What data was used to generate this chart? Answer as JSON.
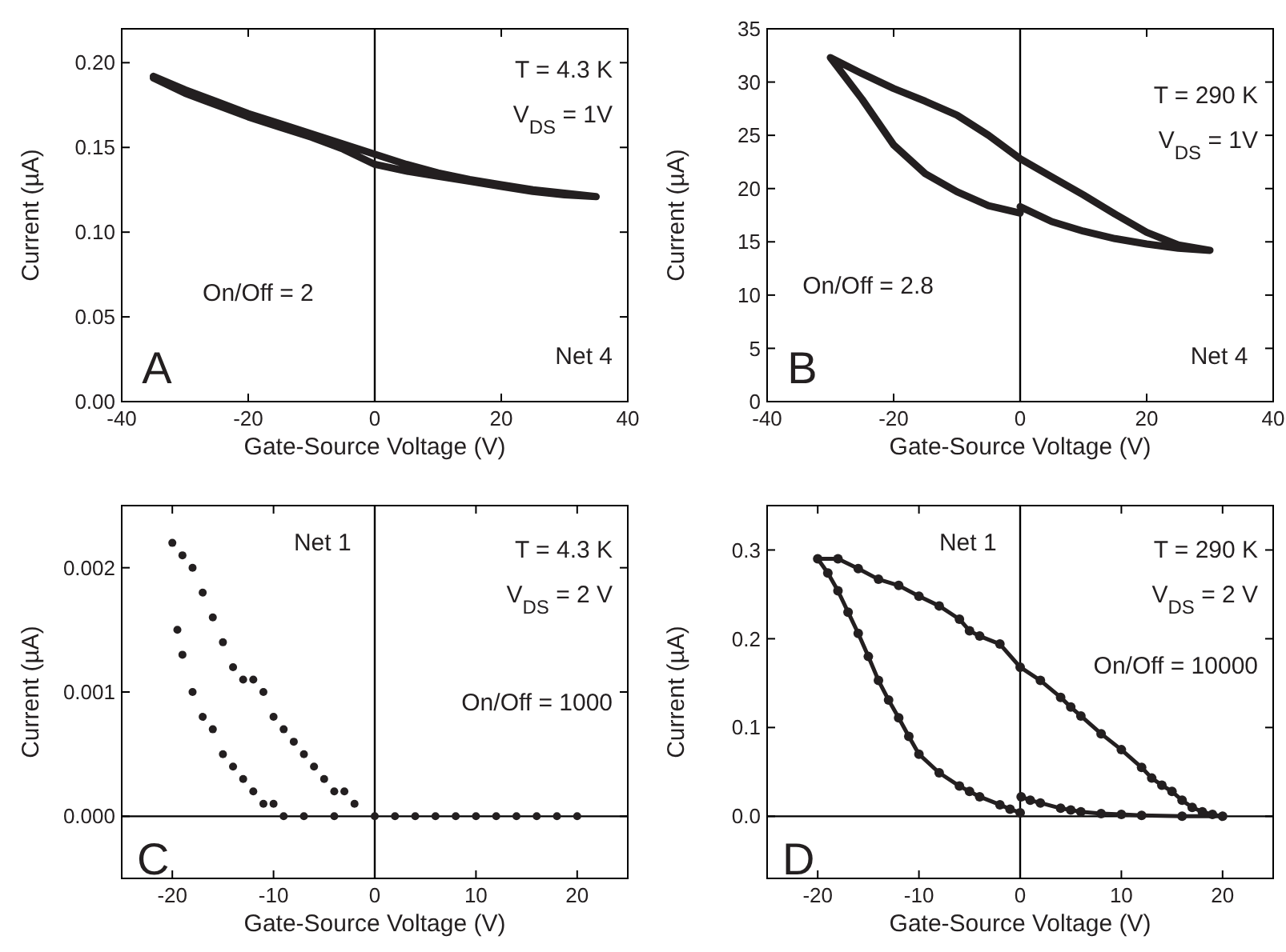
{
  "chart_data": [
    {
      "type": "line",
      "xlabel": "Gate-Source Voltage (V)",
      "ylabel": "Current (µA)",
      "xlim": [
        -40,
        40
      ],
      "xticks": [
        -40,
        -20,
        0,
        20,
        40
      ],
      "ylim": [
        0,
        0.22
      ],
      "yticks": [
        {
          "value": 0,
          "label": "0.00"
        },
        {
          "value": 0.05,
          "label": "0.05"
        },
        {
          "value": 0.1,
          "label": "0.10"
        },
        {
          "value": 0.15,
          "label": "0.15"
        },
        {
          "value": 0.2,
          "label": "0.20"
        }
      ],
      "marker": "none",
      "line_style": "solid",
      "grid": false,
      "ref_lines": [
        {
          "axis": "x",
          "value": 0,
          "color": "#000000"
        }
      ],
      "annotations": [
        "A",
        "T = 4.3 K",
        "V$_{DS}$ = 1V",
        "On/Off = 2",
        "Net 4"
      ],
      "series": [
        {
          "color": "#231f20",
          "x": [
            -35,
            -30,
            -25,
            -20,
            -15,
            -10,
            -5,
            0,
            5,
            10,
            15,
            20,
            25,
            30,
            35,
            30,
            25,
            20,
            15,
            10,
            5,
            0,
            -5,
            -10,
            -15,
            -20,
            -25,
            -30,
            -35
          ],
          "values": [
            0.192,
            0.184,
            0.177,
            0.17,
            0.164,
            0.158,
            0.152,
            0.146,
            0.14,
            0.135,
            0.131,
            0.128,
            0.125,
            0.123,
            0.121,
            0.122,
            0.124,
            0.127,
            0.13,
            0.133,
            0.136,
            0.14,
            0.149,
            0.156,
            0.162,
            0.168,
            0.175,
            0.182,
            0.191
          ]
        }
      ]
    },
    {
      "type": "line",
      "xlabel": "Gate-Source Voltage (V)",
      "ylabel": "Current (µA)",
      "xlim": [
        -40,
        40
      ],
      "xticks": [
        -40,
        -20,
        0,
        20,
        40
      ],
      "ylim": [
        0,
        35
      ],
      "yticks": [
        0,
        5,
        10,
        15,
        20,
        25,
        30,
        35
      ],
      "marker": "none",
      "line_style": "solid",
      "grid": false,
      "ref_lines": [
        {
          "axis": "x",
          "value": 0,
          "color": "#000000"
        }
      ],
      "annotations": [
        "B",
        "T = 290 K",
        "V$_{DS}$ = 1V",
        "On/Off = 2.8",
        "Net 4"
      ],
      "series": [
        {
          "color": "#231f20",
          "x": [
            0,
            5,
            10,
            15,
            20,
            25,
            30,
            25,
            20,
            15,
            10,
            5,
            0,
            -5,
            -10,
            -15,
            -20,
            -25,
            -30,
            -25,
            -20,
            -15,
            -10,
            -5,
            0
          ],
          "values": [
            18.3,
            16.9,
            16.0,
            15.3,
            14.8,
            14.4,
            14.2,
            14.7,
            15.9,
            17.6,
            19.4,
            21.1,
            22.8,
            25.0,
            26.9,
            28.2,
            29.4,
            30.8,
            32.3,
            28.4,
            24.1,
            21.4,
            19.7,
            18.4,
            17.7
          ]
        }
      ]
    },
    {
      "type": "scatter",
      "xlabel": "Gate-Source Voltage (V)",
      "ylabel": "Current (µA)",
      "xlim": [
        -25,
        25
      ],
      "xticks": [
        -20,
        -10,
        0,
        10,
        20
      ],
      "ylim": [
        -0.0005,
        0.0025
      ],
      "yticks": [
        {
          "value": 0,
          "label": "0.000"
        },
        {
          "value": 0.001,
          "label": "0.001"
        },
        {
          "value": 0.002,
          "label": "0.002"
        }
      ],
      "marker": "circle",
      "line_style": "solid",
      "grid": false,
      "ref_lines": [
        {
          "axis": "x",
          "value": 0,
          "color": "#000000"
        },
        {
          "axis": "y",
          "value": 0,
          "color": "#000000"
        }
      ],
      "annotations": [
        "C",
        "T = 4.3 K",
        "V$_{DS}$ = 2 V",
        "On/Off = 1000",
        "Net 1"
      ],
      "series": [
        {
          "color": "#231f20",
          "x": [
            -20,
            -19.5,
            -19,
            -18,
            -17,
            -16,
            -15,
            -14,
            -13,
            -12,
            -11,
            -10,
            -9,
            -7,
            -4,
            0,
            4,
            8,
            12,
            16,
            20,
            18,
            14,
            10,
            6,
            2,
            -2,
            -3,
            -4,
            -5,
            -6,
            -7,
            -8,
            -9,
            -10,
            -11,
            -12,
            -13,
            -14,
            -15,
            -16,
            -17,
            -18,
            -19
          ],
          "values": [
            0.0022,
            0.0015,
            0.0013,
            0.001,
            0.0008,
            0.0007,
            0.0005,
            0.0004,
            0.0003,
            0.0002,
            0.0001,
            0.0001,
            0,
            0,
            0,
            0,
            0,
            0,
            0,
            0,
            0,
            0,
            0,
            0,
            0,
            0,
            0.0001,
            0.0002,
            0.0002,
            0.0003,
            0.0004,
            0.0005,
            0.0006,
            0.0007,
            0.0008,
            0.001,
            0.0011,
            0.0011,
            0.0012,
            0.0014,
            0.0016,
            0.0018,
            0.002,
            0.0021
          ]
        }
      ]
    },
    {
      "type": "line",
      "xlabel": "Gate-Source Voltage (V)",
      "ylabel": "Current (µA)",
      "xlim": [
        -25,
        25
      ],
      "xticks": [
        -20,
        -10,
        0,
        10,
        20
      ],
      "ylim": [
        -0.07,
        0.35
      ],
      "yticks": [
        {
          "value": 0,
          "label": "0.0"
        },
        {
          "value": 0.1,
          "label": "0.1"
        },
        {
          "value": 0.2,
          "label": "0.2"
        },
        {
          "value": 0.3,
          "label": "0.3"
        }
      ],
      "marker": "circle",
      "line_style": "solid",
      "grid": false,
      "ref_lines": [
        {
          "axis": "x",
          "value": 0,
          "color": "#000000"
        },
        {
          "axis": "y",
          "value": 0,
          "color": "#000000"
        }
      ],
      "annotations": [
        "D",
        "T = 290 K",
        "V$_{DS}$ = 2 V",
        "On/Off = 10000",
        "Net 1"
      ],
      "series": [
        {
          "color": "#231f20",
          "x": [
            0.1,
            1,
            2,
            4,
            5,
            6,
            8,
            10,
            12,
            16,
            20,
            19,
            18,
            17,
            16,
            15,
            14,
            13,
            12,
            10,
            8,
            6,
            5,
            4,
            2,
            0,
            -2,
            -4,
            -5,
            -6,
            -8,
            -10,
            -12,
            -14,
            -16,
            -18,
            -20,
            -19,
            -18,
            -17,
            -16,
            -15,
            -14,
            -13,
            -12,
            -11,
            -10,
            -8,
            -6,
            -5,
            -4,
            -2,
            -1,
            0
          ],
          "values": [
            0.022,
            0.018,
            0.015,
            0.009,
            0.007,
            0.005,
            0.003,
            0.002,
            0.001,
            0,
            0,
            0.002,
            0.005,
            0.01,
            0.018,
            0.028,
            0.035,
            0.043,
            0.055,
            0.075,
            0.093,
            0.113,
            0.123,
            0.134,
            0.153,
            0.168,
            0.194,
            0.203,
            0.209,
            0.222,
            0.237,
            0.248,
            0.26,
            0.267,
            0.279,
            0.29,
            0.29,
            0.274,
            0.254,
            0.23,
            0.206,
            0.18,
            0.153,
            0.131,
            0.111,
            0.09,
            0.07,
            0.049,
            0.034,
            0.028,
            0.022,
            0.013,
            0.008,
            0.004
          ]
        }
      ]
    }
  ]
}
